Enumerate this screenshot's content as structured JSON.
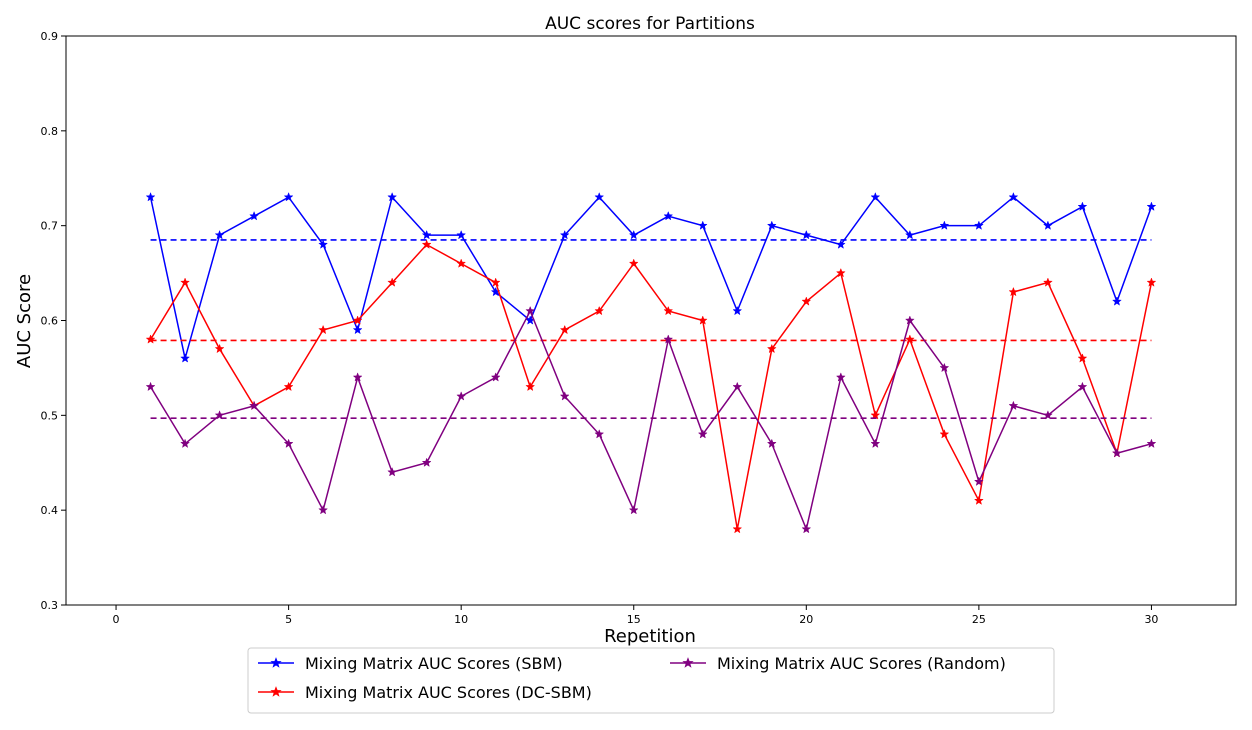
{
  "chart_data": {
    "type": "line",
    "title": "AUC scores for Partitions",
    "xlabel": "Repetition",
    "ylabel": "AUC Score",
    "xlim": [
      -1.45,
      32.45
    ],
    "ylim": [
      0.3,
      0.9
    ],
    "xticks": [
      0,
      5,
      10,
      15,
      20,
      25,
      30
    ],
    "yticks": [
      0.3,
      0.4,
      0.5,
      0.6,
      0.7,
      0.8,
      0.9
    ],
    "ytick_labels": [
      "0.3",
      "0.4",
      "0.5",
      "0.6",
      "0.7",
      "0.8",
      "0.9"
    ],
    "grid": false,
    "legend_position": "bottom-center (below axes)",
    "x": [
      1,
      2,
      3,
      4,
      5,
      6,
      7,
      8,
      9,
      10,
      11,
      12,
      13,
      14,
      15,
      16,
      17,
      18,
      19,
      20,
      21,
      22,
      23,
      24,
      25,
      26,
      27,
      28,
      29,
      30
    ],
    "series": [
      {
        "name": "Mixing Matrix AUC Scores (SBM)",
        "color": "#0000ff",
        "marker": "star",
        "values": [
          0.73,
          0.56,
          0.69,
          0.71,
          0.73,
          0.68,
          0.59,
          0.73,
          0.69,
          0.69,
          0.63,
          0.6,
          0.69,
          0.73,
          0.69,
          0.71,
          0.7,
          0.61,
          0.7,
          0.69,
          0.68,
          0.73,
          0.69,
          0.7,
          0.7,
          0.73,
          0.7,
          0.72,
          0.62,
          0.72
        ],
        "mean_line": 0.685
      },
      {
        "name": "Mixing Matrix AUC Scores (DC-SBM)",
        "color": "#ff0000",
        "marker": "star",
        "values": [
          0.58,
          0.64,
          0.57,
          0.51,
          0.53,
          0.59,
          0.6,
          0.64,
          0.68,
          0.66,
          0.64,
          0.53,
          0.59,
          0.61,
          0.66,
          0.61,
          0.6,
          0.38,
          0.57,
          0.62,
          0.65,
          0.5,
          0.58,
          0.48,
          0.41,
          0.63,
          0.64,
          0.56,
          0.46,
          0.64
        ],
        "mean_line": 0.579
      },
      {
        "name": "Mixing Matrix AUC Scores (Random)",
        "color": "#800080",
        "marker": "star",
        "values": [
          0.53,
          0.47,
          0.5,
          0.51,
          0.47,
          0.4,
          0.54,
          0.44,
          0.45,
          0.52,
          0.54,
          0.61,
          0.52,
          0.48,
          0.4,
          0.58,
          0.48,
          0.53,
          0.47,
          0.38,
          0.54,
          0.47,
          0.6,
          0.55,
          0.43,
          0.51,
          0.5,
          0.53,
          0.46,
          0.47
        ],
        "mean_line": 0.497
      }
    ]
  }
}
